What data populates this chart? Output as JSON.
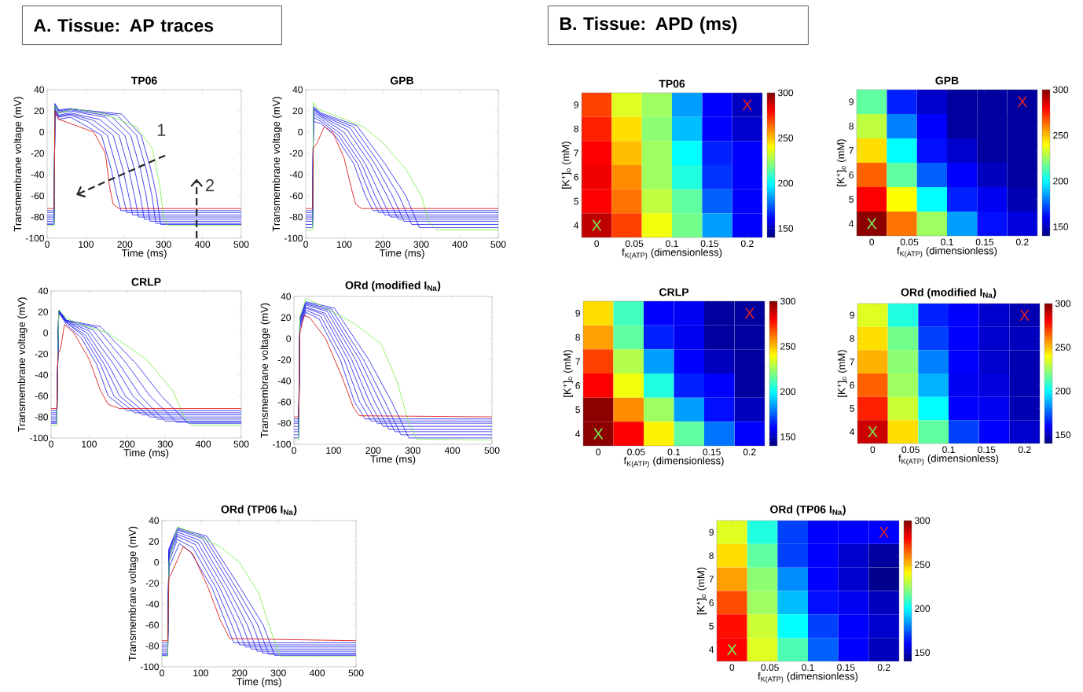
{
  "chart_data": [
    {
      "type": "line",
      "title": "TP06",
      "xlabel": "Time (ms)",
      "ylabel": "Transmembrane voltage (mV)",
      "xlim": [
        0,
        500
      ],
      "ylim": [
        -100,
        40
      ],
      "xticks": [
        0,
        100,
        200,
        300,
        400,
        500
      ],
      "yticks": [
        -100,
        -80,
        -60,
        -40,
        -20,
        0,
        20,
        40
      ],
      "annotations": [
        "A. Tissue: AP traces",
        "1",
        "2"
      ],
      "series": [
        {
          "color": "#1a1aee",
          "x": [
            0,
            18,
            20,
            30,
            60,
            90,
            140,
            165,
            180,
            190,
            500
          ],
          "values": [
            -74,
            -74,
            18,
            12,
            14,
            8,
            -3,
            -35,
            -60,
            -74,
            -74
          ]
        },
        {
          "color": "#1a1aee",
          "x": [
            0,
            18,
            20,
            30,
            60,
            105,
            155,
            180,
            195,
            205,
            500
          ],
          "values": [
            -76,
            -76,
            20,
            14,
            16,
            10,
            -3,
            -35,
            -60,
            -76,
            -76
          ]
        },
        {
          "color": "#1a1aee",
          "x": [
            0,
            18,
            20,
            30,
            60,
            120,
            170,
            195,
            210,
            220,
            500
          ],
          "values": [
            -78,
            -78,
            21,
            15,
            17,
            11,
            -3,
            -35,
            -60,
            -78,
            -78
          ]
        },
        {
          "color": "#1a1aee",
          "x": [
            0,
            18,
            20,
            30,
            60,
            135,
            185,
            210,
            225,
            235,
            500
          ],
          "values": [
            -80,
            -80,
            22,
            16,
            18,
            12,
            -3,
            -35,
            -60,
            -80,
            -80
          ]
        },
        {
          "color": "#1a1aee",
          "x": [
            0,
            18,
            20,
            30,
            60,
            150,
            200,
            225,
            240,
            250,
            500
          ],
          "values": [
            -82,
            -82,
            24,
            18,
            20,
            14,
            -3,
            -35,
            -60,
            -82,
            -82
          ]
        },
        {
          "color": "#1a1aee",
          "x": [
            0,
            18,
            20,
            30,
            60,
            165,
            215,
            240,
            255,
            265,
            500
          ],
          "values": [
            -84,
            -84,
            25,
            19,
            21,
            15,
            -3,
            -35,
            -60,
            -84,
            -84
          ]
        },
        {
          "color": "#1a1aee",
          "x": [
            0,
            18,
            20,
            30,
            60,
            180,
            230,
            255,
            270,
            280,
            500
          ],
          "values": [
            -86,
            -86,
            26,
            20,
            22,
            16,
            -3,
            -35,
            -60,
            -86,
            -86
          ]
        },
        {
          "color": "#1a1aee",
          "x": [
            0,
            18,
            20,
            30,
            60,
            192,
            242,
            267,
            282,
            292,
            500
          ],
          "values": [
            -87,
            -87,
            27,
            21,
            22,
            17,
            -3,
            -35,
            -60,
            -87,
            -87
          ]
        },
        {
          "color": "#77ee44",
          "x": [
            0,
            18,
            20,
            30,
            70,
            150,
            230,
            270,
            290,
            300,
            310,
            500
          ],
          "values": [
            -88,
            -88,
            25,
            18,
            22,
            17,
            5,
            -15,
            -50,
            -80,
            -88,
            -88
          ]
        },
        {
          "color": "#dd0000",
          "x": [
            0,
            18,
            20,
            30,
            60,
            120,
            150,
            160,
            170,
            185,
            500
          ],
          "values": [
            -72,
            -72,
            20,
            12,
            8,
            0,
            -20,
            -50,
            -68,
            -72,
            -72
          ]
        }
      ]
    },
    {
      "type": "line",
      "title": "GPB",
      "xlabel": "Time (ms)",
      "ylabel": "Transmembrane voltage (mV)",
      "xlim": [
        0,
        500
      ],
      "ylim": [
        -100,
        40
      ],
      "xticks": [
        0,
        100,
        200,
        300,
        400,
        500
      ],
      "yticks": [
        -100,
        -80,
        -60,
        -40,
        -20,
        0,
        20,
        40
      ],
      "series": [
        {
          "color": "#1a1aee",
          "x": [
            0,
            18,
            20,
            40,
            80,
            125,
            155,
            175,
            500
          ],
          "values": [
            -74,
            -74,
            10,
            8,
            -5,
            -30,
            -60,
            -74,
            -74
          ]
        },
        {
          "color": "#1a1aee",
          "x": [
            0,
            18,
            20,
            40,
            85,
            135,
            168,
            190,
            500
          ],
          "values": [
            -76,
            -76,
            14,
            10,
            -3,
            -30,
            -60,
            -76,
            -76
          ]
        },
        {
          "color": "#1a1aee",
          "x": [
            0,
            18,
            20,
            40,
            92,
            145,
            180,
            205,
            500
          ],
          "values": [
            -78,
            -78,
            17,
            12,
            -2,
            -30,
            -60,
            -78,
            -78
          ]
        },
        {
          "color": "#1a1aee",
          "x": [
            0,
            18,
            20,
            40,
            99,
            155,
            194,
            220,
            500
          ],
          "values": [
            -80,
            -80,
            19,
            14,
            0,
            -30,
            -60,
            -80,
            -80
          ]
        },
        {
          "color": "#1a1aee",
          "x": [
            0,
            18,
            20,
            40,
            108,
            168,
            211,
            240,
            500
          ],
          "values": [
            -82,
            -82,
            21,
            15,
            2,
            -30,
            -60,
            -82,
            -82
          ]
        },
        {
          "color": "#1a1aee",
          "x": [
            0,
            18,
            20,
            40,
            115,
            180,
            225,
            255,
            500
          ],
          "values": [
            -84,
            -84,
            22,
            16,
            4,
            -30,
            -60,
            -84,
            -84
          ]
        },
        {
          "color": "#1a1aee",
          "x": [
            0,
            18,
            20,
            40,
            124,
            192,
            242,
            275,
            500
          ],
          "values": [
            -87,
            -87,
            23,
            17,
            5,
            -30,
            -60,
            -87,
            -87
          ]
        },
        {
          "color": "#1a1aee",
          "x": [
            0,
            18,
            20,
            40,
            133,
            206,
            260,
            295,
            500
          ],
          "values": [
            -90,
            -90,
            24,
            18,
            6,
            -30,
            -60,
            -90,
            -90
          ]
        },
        {
          "color": "#77ee44",
          "x": [
            0,
            18,
            20,
            30,
            80,
            150,
            200,
            260,
            300,
            320,
            340,
            500
          ],
          "values": [
            -92,
            -92,
            28,
            22,
            15,
            5,
            -10,
            -35,
            -60,
            -85,
            -92,
            -92
          ]
        },
        {
          "color": "#dd0000",
          "x": [
            0,
            18,
            20,
            30,
            48,
            70,
            100,
            120,
            130,
            145,
            500
          ],
          "values": [
            -72,
            -72,
            -15,
            -10,
            5,
            0,
            -25,
            -55,
            -68,
            -72,
            -72
          ]
        }
      ]
    },
    {
      "type": "line",
      "title": "CRLP",
      "xlabel": "Time (ms)",
      "ylabel": "Transmembrane voltage (mV)",
      "xlim": [
        0,
        500
      ],
      "ylim": [
        -100,
        40
      ],
      "xticks": [
        0,
        100,
        200,
        300,
        400,
        500
      ],
      "yticks": [
        -100,
        -80,
        -60,
        -40,
        -20,
        0,
        20,
        40
      ],
      "series": [
        {
          "color": "#1a1aee",
          "x": [
            0,
            15,
            20,
            40,
            80,
            120,
            150,
            200,
            500
          ],
          "values": [
            -74,
            -74,
            20,
            8,
            -5,
            -30,
            -60,
            -74,
            -74
          ]
        },
        {
          "color": "#1a1aee",
          "x": [
            0,
            15,
            20,
            40,
            85,
            130,
            165,
            220,
            500
          ],
          "values": [
            -76,
            -76,
            20,
            10,
            -3,
            -30,
            -60,
            -76,
            -76
          ]
        },
        {
          "color": "#1a1aee",
          "x": [
            0,
            15,
            20,
            40,
            90,
            140,
            180,
            240,
            500
          ],
          "values": [
            -78,
            -78,
            20,
            10,
            -2,
            -30,
            -60,
            -78,
            -78
          ]
        },
        {
          "color": "#1a1aee",
          "x": [
            0,
            15,
            20,
            40,
            95,
            150,
            195,
            260,
            500
          ],
          "values": [
            -80,
            -80,
            21,
            11,
            0,
            -30,
            -60,
            -80,
            -80
          ]
        },
        {
          "color": "#1a1aee",
          "x": [
            0,
            15,
            20,
            40,
            100,
            165,
            215,
            280,
            500
          ],
          "values": [
            -82,
            -82,
            21,
            11,
            2,
            -30,
            -60,
            -82,
            -82
          ]
        },
        {
          "color": "#1a1aee",
          "x": [
            0,
            15,
            20,
            40,
            110,
            180,
            235,
            300,
            500
          ],
          "values": [
            -84,
            -84,
            22,
            12,
            3,
            -30,
            -60,
            -84,
            -84
          ]
        },
        {
          "color": "#1a1aee",
          "x": [
            0,
            15,
            20,
            40,
            120,
            200,
            260,
            330,
            500
          ],
          "values": [
            -85,
            -85,
            22,
            12,
            5,
            -30,
            -60,
            -85,
            -85
          ]
        },
        {
          "color": "#1a1aee",
          "x": [
            0,
            15,
            20,
            40,
            130,
            225,
            290,
            360,
            500
          ],
          "values": [
            -86,
            -86,
            22,
            12,
            6,
            -30,
            -60,
            -86,
            -86
          ]
        },
        {
          "color": "#77ee44",
          "x": [
            0,
            15,
            20,
            40,
            80,
            150,
            250,
            320,
            350,
            370,
            500
          ],
          "values": [
            -88,
            -88,
            22,
            14,
            8,
            0,
            -25,
            -55,
            -80,
            -88,
            -88
          ]
        },
        {
          "color": "#dd0000",
          "x": [
            0,
            15,
            18,
            25,
            35,
            60,
            100,
            130,
            150,
            180,
            500
          ],
          "values": [
            -72,
            -72,
            -20,
            -15,
            8,
            0,
            -25,
            -55,
            -68,
            -72,
            -72
          ]
        }
      ]
    },
    {
      "type": "line",
      "title": "ORd (modified I$_{Na}$)",
      "xlabel": "Time (ms)",
      "ylabel": "Transmembrane voltage (mV)",
      "xlim": [
        0,
        500
      ],
      "ylim": [
        -100,
        40
      ],
      "xticks": [
        0,
        100,
        200,
        300,
        400,
        500
      ],
      "yticks": [
        -100,
        -80,
        -60,
        -40,
        -20,
        0,
        20,
        40
      ],
      "series": [
        {
          "color": "#1a1aee",
          "x": [
            0,
            12,
            15,
            30,
            63,
            117,
            153,
            180,
            500
          ],
          "values": [
            -76,
            -76,
            10,
            25,
            19,
            -20,
            -60,
            -76,
            -76
          ]
        },
        {
          "color": "#1a1aee",
          "x": [
            0,
            12,
            15,
            30,
            68,
            127,
            166,
            195,
            500
          ],
          "values": [
            -78,
            -78,
            12,
            27,
            21,
            -20,
            -60,
            -78,
            -78
          ]
        },
        {
          "color": "#1a1aee",
          "x": [
            0,
            12,
            15,
            30,
            74,
            137,
            179,
            210,
            500
          ],
          "values": [
            -80,
            -80,
            14,
            29,
            23,
            -20,
            -60,
            -80,
            -80
          ]
        },
        {
          "color": "#1a1aee",
          "x": [
            0,
            12,
            15,
            30,
            79,
            146,
            191,
            225,
            500
          ],
          "values": [
            -83,
            -83,
            15,
            30,
            24,
            -20,
            -60,
            -83,
            -83
          ]
        },
        {
          "color": "#1a1aee",
          "x": [
            0,
            12,
            15,
            30,
            84,
            156,
            204,
            240,
            500
          ],
          "values": [
            -86,
            -86,
            17,
            32,
            26,
            -20,
            -60,
            -86,
            -86
          ]
        },
        {
          "color": "#1a1aee",
          "x": [
            0,
            12,
            15,
            30,
            89,
            166,
            217,
            255,
            500
          ],
          "values": [
            -88,
            -88,
            18,
            33,
            27,
            -20,
            -60,
            -88,
            -88
          ]
        },
        {
          "color": "#1a1aee",
          "x": [
            0,
            12,
            15,
            30,
            95,
            176,
            230,
            270,
            500
          ],
          "values": [
            -91,
            -91,
            19,
            34,
            28,
            -20,
            -60,
            -91,
            -91
          ]
        },
        {
          "color": "#1a1aee",
          "x": [
            0,
            12,
            15,
            30,
            102,
            189,
            247,
            290,
            500
          ],
          "values": [
            -94,
            -94,
            20,
            35,
            29,
            -20,
            -60,
            -94,
            -94
          ]
        },
        {
          "color": "#77ee44",
          "x": [
            0,
            12,
            15,
            30,
            60,
            150,
            220,
            260,
            290,
            310,
            500
          ],
          "values": [
            -96,
            -96,
            20,
            38,
            33,
            15,
            -5,
            -40,
            -80,
            -95,
            -96
          ]
        },
        {
          "color": "#dd0000",
          "x": [
            0,
            12,
            15,
            25,
            40,
            80,
            120,
            150,
            165,
            500
          ],
          "values": [
            -74,
            -74,
            5,
            22,
            20,
            0,
            -35,
            -65,
            -73,
            -74
          ]
        }
      ]
    },
    {
      "type": "line",
      "title": "ORd (TP06 I$_{Na}$)",
      "xlabel": "Time (ms)",
      "ylabel": "Transmembrane voltage (mV)",
      "xlim": [
        0,
        500
      ],
      "ylim": [
        -100,
        40
      ],
      "xticks": [
        0,
        100,
        200,
        300,
        400,
        500
      ],
      "yticks": [
        -100,
        -80,
        -60,
        -40,
        -20,
        0,
        20,
        40
      ],
      "series": [
        {
          "color": "#1a1aee",
          "x": [
            0,
            15,
            18,
            45,
            74,
            130,
            167,
            185,
            500
          ],
          "values": [
            -77,
            -77,
            -5,
            18,
            10,
            -25,
            -60,
            -77,
            -77
          ]
        },
        {
          "color": "#1a1aee",
          "x": [
            0,
            15,
            18,
            40,
            80,
            140,
            180,
            200,
            500
          ],
          "values": [
            -79,
            -79,
            0,
            22,
            14,
            -25,
            -60,
            -79,
            -79
          ]
        },
        {
          "color": "#1a1aee",
          "x": [
            0,
            15,
            18,
            40,
            86,
            150,
            193,
            215,
            500
          ],
          "values": [
            -81,
            -81,
            5,
            25,
            17,
            -25,
            -60,
            -81,
            -81
          ]
        },
        {
          "color": "#1a1aee",
          "x": [
            0,
            15,
            18,
            40,
            92,
            161,
            207,
            230,
            500
          ],
          "values": [
            -83,
            -83,
            7,
            27,
            19,
            -25,
            -60,
            -83,
            -83
          ]
        },
        {
          "color": "#1a1aee",
          "x": [
            0,
            15,
            18,
            40,
            98,
            171,
            220,
            245,
            500
          ],
          "values": [
            -85,
            -85,
            9,
            29,
            21,
            -25,
            -60,
            -85,
            -85
          ]
        },
        {
          "color": "#1a1aee",
          "x": [
            0,
            15,
            18,
            40,
            104,
            182,
            234,
            260,
            500
          ],
          "values": [
            -87,
            -87,
            11,
            31,
            23,
            -25,
            -60,
            -87,
            -87
          ]
        },
        {
          "color": "#1a1aee",
          "x": [
            0,
            15,
            18,
            40,
            110,
            192,
            247,
            275,
            500
          ],
          "values": [
            -88,
            -88,
            12,
            32,
            24,
            -25,
            -60,
            -88,
            -88
          ]
        },
        {
          "color": "#1a1aee",
          "x": [
            0,
            15,
            18,
            40,
            116,
            203,
            261,
            290,
            500
          ],
          "values": [
            -89,
            -89,
            13,
            33,
            25,
            -25,
            -60,
            -89,
            -89
          ]
        },
        {
          "color": "#77ee44",
          "x": [
            0,
            15,
            18,
            40,
            80,
            150,
            200,
            250,
            280,
            305,
            500
          ],
          "values": [
            -90,
            -90,
            0,
            34,
            28,
            15,
            0,
            -30,
            -65,
            -90,
            -90
          ]
        },
        {
          "color": "#dd0000",
          "x": [
            0,
            15,
            18,
            25,
            55,
            80,
            120,
            150,
            175,
            500
          ],
          "values": [
            -75,
            -75,
            -15,
            -10,
            15,
            8,
            -25,
            -55,
            -73,
            -75
          ]
        }
      ]
    },
    {
      "type": "heatmap",
      "title": "TP06",
      "xlabel": "f$_{K(ATP)}$ (dimensionless)",
      "ylabel": "[K$^{+}$]$_{o}$ (mM)",
      "x": [
        0,
        0.04,
        0.08,
        0.12,
        0.16,
        0.2
      ],
      "xlim": [
        -0.02,
        0.22
      ],
      "xticks": [
        0,
        0.05,
        0.1,
        0.15,
        0.2
      ],
      "y_categories": [
        "9",
        "8",
        "7",
        "6",
        "5",
        "4"
      ],
      "clim": [
        140,
        300
      ],
      "cticks": [
        150,
        200,
        250,
        300
      ],
      "annotations": [
        "B. Tissue: APD (ms)",
        "X",
        "X"
      ],
      "cells": [
        [
          270,
          235,
          225,
          185,
          160,
          150
        ],
        [
          275,
          245,
          222,
          190,
          160,
          152
        ],
        [
          280,
          250,
          225,
          200,
          165,
          160
        ],
        [
          282,
          258,
          225,
          205,
          168,
          160
        ],
        [
          280,
          262,
          230,
          215,
          175,
          160
        ],
        [
          290,
          270,
          238,
          218,
          185,
          160
        ]
      ]
    },
    {
      "type": "heatmap",
      "title": "GPB",
      "xlabel": "f$_{K(ATP)}$ (dimensionless)",
      "ylabel": "[K$^{+}$]$_{o}$ (mM)",
      "x": [
        0,
        0.04,
        0.08,
        0.12,
        0.16,
        0.2
      ],
      "xlim": [
        -0.02,
        0.22
      ],
      "xticks": [
        0,
        0.05,
        0.1,
        0.15,
        0.2
      ],
      "y_categories": [
        "9",
        "8",
        "7",
        "6",
        "5",
        "4"
      ],
      "clim": [
        140,
        300
      ],
      "cticks": [
        150,
        200,
        250,
        300
      ],
      "annotations": [
        "X",
        "X"
      ],
      "cells": [
        [
          215,
          165,
          152,
          145,
          145,
          145
        ],
        [
          230,
          180,
          160,
          145,
          145,
          145
        ],
        [
          245,
          200,
          162,
          152,
          145,
          145
        ],
        [
          265,
          215,
          175,
          160,
          150,
          145
        ],
        [
          280,
          240,
          200,
          165,
          158,
          148
        ],
        [
          298,
          262,
          225,
          185,
          162,
          155
        ]
      ]
    },
    {
      "type": "heatmap",
      "title": "CRLP",
      "xlabel": "f$_{K(ATP)}$ (dimensionless)",
      "ylabel": "[K$^{+}$]$_{o}$ (mM)",
      "x": [
        0,
        0.04,
        0.08,
        0.12,
        0.16,
        0.2
      ],
      "xlim": [
        -0.02,
        0.22
      ],
      "xticks": [
        0,
        0.05,
        0.1,
        0.15,
        0.2
      ],
      "y_categories": [
        "9",
        "8",
        "7",
        "6",
        "5",
        "4"
      ],
      "clim": [
        140,
        300
      ],
      "cticks": [
        150,
        200,
        250,
        300
      ],
      "annotations": [
        "X",
        "X"
      ],
      "cells": [
        [
          245,
          210,
          160,
          158,
          145,
          145
        ],
        [
          255,
          215,
          165,
          158,
          145,
          145
        ],
        [
          270,
          228,
          185,
          160,
          150,
          145
        ],
        [
          280,
          238,
          205,
          165,
          160,
          145
        ],
        [
          298,
          258,
          225,
          185,
          162,
          150
        ],
        [
          298,
          280,
          242,
          215,
          178,
          160
        ]
      ]
    },
    {
      "type": "heatmap",
      "title": "ORd (modified I$_{Na}$)",
      "xlabel": "f$_{K(ATP)}$ (dimensionless)",
      "ylabel": "[K$^{+}$]$_{o}$ (mM)",
      "x": [
        0,
        0.04,
        0.08,
        0.12,
        0.16,
        0.2
      ],
      "xlim": [
        -0.02,
        0.22
      ],
      "xticks": [
        0,
        0.05,
        0.1,
        0.15,
        0.2
      ],
      "y_categories": [
        "9",
        "8",
        "7",
        "6",
        "5",
        "4"
      ],
      "clim": [
        140,
        300
      ],
      "cticks": [
        150,
        200,
        250,
        300
      ],
      "annotations": [
        "X",
        "X"
      ],
      "cells": [
        [
          235,
          205,
          165,
          160,
          152,
          148
        ],
        [
          245,
          218,
          170,
          160,
          152,
          150
        ],
        [
          252,
          222,
          180,
          160,
          152,
          148
        ],
        [
          265,
          225,
          188,
          158,
          155,
          148
        ],
        [
          275,
          232,
          200,
          160,
          158,
          148
        ],
        [
          288,
          245,
          215,
          170,
          160,
          152
        ]
      ]
    },
    {
      "type": "heatmap",
      "title": "ORd (TP06 I$_{Na}$)",
      "xlabel": "f$_{K(ATP)}$ (dimensionless)",
      "ylabel": "[K$^{+}$]$_{o}$ (mM)",
      "x": [
        0,
        0.04,
        0.08,
        0.12,
        0.16,
        0.2
      ],
      "xlim": [
        -0.02,
        0.22
      ],
      "xticks": [
        0,
        0.05,
        0.1,
        0.15,
        0.2
      ],
      "y_categories": [
        "9",
        "8",
        "7",
        "6",
        "5",
        "4"
      ],
      "clim": [
        140,
        300
      ],
      "cticks": [
        150,
        200,
        250,
        300
      ],
      "annotations": [
        "X",
        "X"
      ],
      "cells": [
        [
          235,
          205,
          170,
          160,
          160,
          160
        ],
        [
          245,
          215,
          170,
          160,
          152,
          145
        ],
        [
          255,
          222,
          182,
          160,
          152,
          142
        ],
        [
          268,
          225,
          190,
          162,
          158,
          150
        ],
        [
          278,
          232,
          200,
          170,
          160,
          152
        ],
        [
          280,
          235,
          212,
          175,
          160,
          150
        ]
      ]
    }
  ]
}
